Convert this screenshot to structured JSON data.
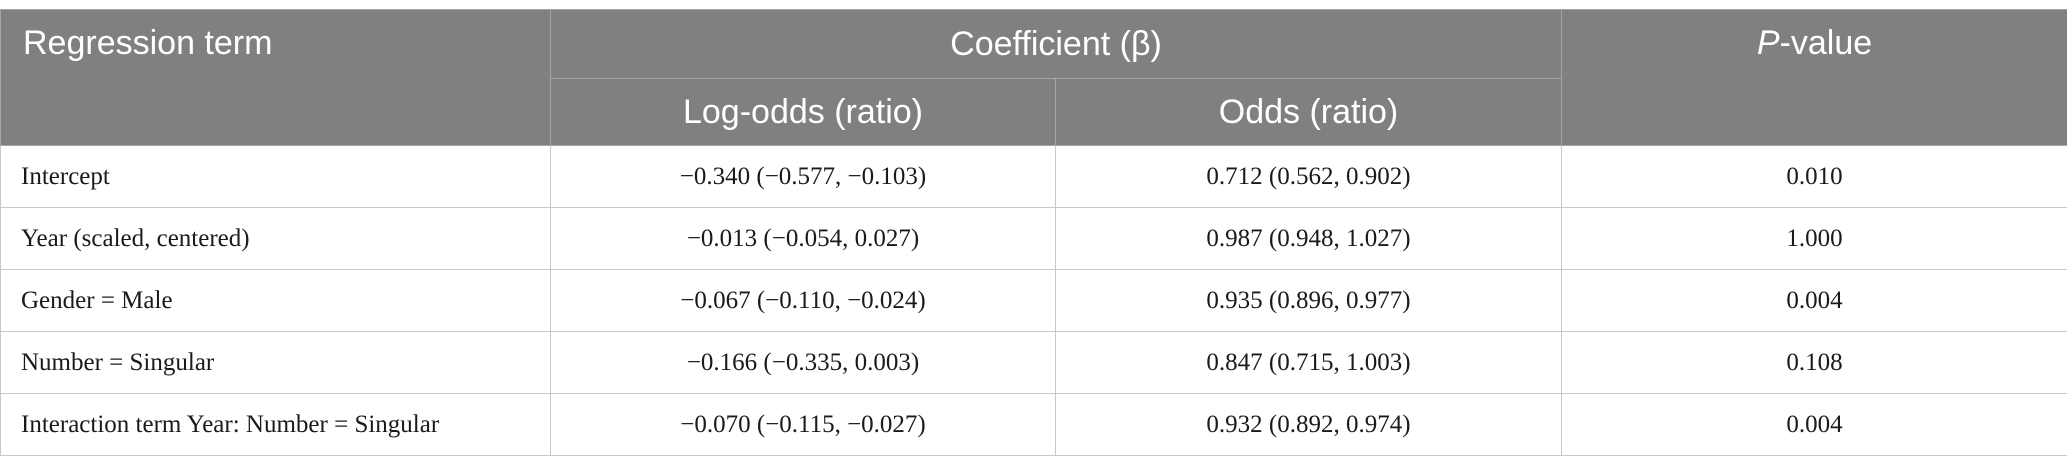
{
  "header": {
    "regression_term": "Regression term",
    "coefficient": "Coefficient (β)",
    "p_prefix": "P",
    "p_suffix": "-value",
    "log_odds": "Log-odds (ratio)",
    "odds": "Odds (ratio)"
  },
  "rows": [
    {
      "term": "Intercept",
      "log_odds": "−0.340 (−0.577, −0.103)",
      "odds": "0.712 (0.562, 0.902)",
      "p": "0.010"
    },
    {
      "term": "Year (scaled, centered)",
      "log_odds": "−0.013 (−0.054, 0.027)",
      "odds": "0.987 (0.948, 1.027)",
      "p": "1.000"
    },
    {
      "term": "Gender = Male",
      "log_odds": "−0.067 (−0.110, −0.024)",
      "odds": "0.935 (0.896, 0.977)",
      "p": "0.004"
    },
    {
      "term": "Number = Singular",
      "log_odds": "−0.166 (−0.335, 0.003)",
      "odds": "0.847 (0.715, 1.003)",
      "p": "0.108"
    },
    {
      "term": "Interaction term Year: Number = Singular",
      "log_odds": "−0.070 (−0.115, −0.027)",
      "odds": "0.932 (0.892, 0.974)",
      "p": "0.004"
    }
  ]
}
